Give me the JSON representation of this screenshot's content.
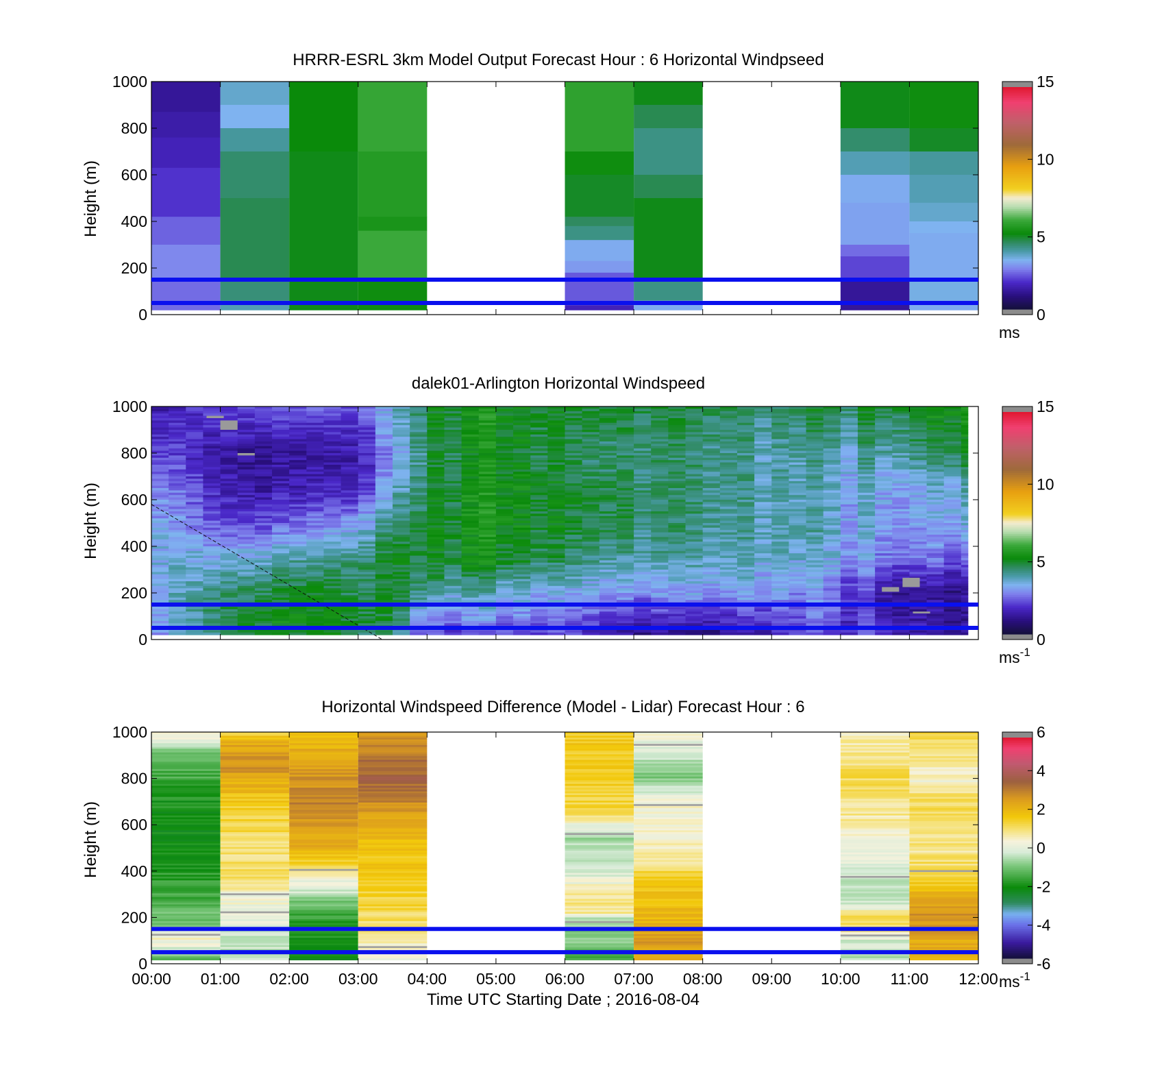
{
  "figure": {
    "xlabel": "Time UTC  Starting Date ; 2016-08-04",
    "time_ticks": [
      "00:00",
      "01:00",
      "02:00",
      "03:00",
      "04:00",
      "05:00",
      "06:00",
      "07:00",
      "08:00",
      "09:00",
      "10:00",
      "11:00",
      "12:00"
    ]
  },
  "chart_data": [
    {
      "type": "heatmap",
      "title": "HRRR-ESRL 3km Model Output   Forecast Hour : 6 Horizontal Windpseed",
      "ylabel": "Height (m)",
      "xlabel": "",
      "xlim": [
        0,
        12
      ],
      "ylim": [
        0,
        1000
      ],
      "yticks": [
        "0",
        "200",
        "400",
        "600",
        "800",
        "1000"
      ],
      "colorbar": {
        "ticks": [
          "0",
          "5",
          "10",
          "15"
        ],
        "range": [
          0,
          15
        ],
        "unit": "ms",
        "unit_exp": ""
      },
      "reference_heights": [
        50,
        150
      ],
      "note_columns_hours": [
        0,
        1,
        2,
        3,
        6,
        7,
        10,
        11
      ],
      "columns": [
        {
          "start": 0,
          "end": 1,
          "cells": [
            [
              1000,
              870,
              1.2
            ],
            [
              870,
              760,
              1.4
            ],
            [
              760,
              630,
              1.6
            ],
            [
              630,
              420,
              1.9
            ],
            [
              420,
              300,
              2.4
            ],
            [
              300,
              150,
              2.8
            ],
            [
              150,
              20,
              2.5
            ]
          ]
        },
        {
          "start": 1,
          "end": 2,
          "cells": [
            [
              1000,
              900,
              3.6
            ],
            [
              900,
              800,
              3.3
            ],
            [
              800,
              700,
              4.0
            ],
            [
              700,
              500,
              4.4
            ],
            [
              500,
              150,
              4.6
            ],
            [
              150,
              60,
              4.3
            ],
            [
              60,
              20,
              3.8
            ]
          ]
        },
        {
          "start": 2,
          "end": 3,
          "cells": [
            [
              1000,
              700,
              5.1
            ],
            [
              700,
              20,
              5.0
            ]
          ]
        },
        {
          "start": 3,
          "end": 4,
          "cells": [
            [
              1000,
              700,
              5.9
            ],
            [
              700,
              420,
              5.6
            ],
            [
              420,
              360,
              5.4
            ],
            [
              360,
              150,
              6.0
            ],
            [
              150,
              20,
              5.2
            ]
          ]
        },
        {
          "start": 6,
          "end": 7,
          "cells": [
            [
              1000,
              700,
              5.8
            ],
            [
              700,
              600,
              5.2
            ],
            [
              600,
              420,
              4.9
            ],
            [
              420,
              380,
              4.5
            ],
            [
              380,
              320,
              4.2
            ],
            [
              320,
              230,
              3.2
            ],
            [
              230,
              180,
              3.0
            ],
            [
              180,
              40,
              2.3
            ],
            [
              40,
              20,
              1.6
            ]
          ]
        },
        {
          "start": 7,
          "end": 8,
          "cells": [
            [
              1000,
              900,
              5.0
            ],
            [
              900,
              800,
              4.6
            ],
            [
              800,
              600,
              4.2
            ],
            [
              600,
              500,
              4.6
            ],
            [
              500,
              150,
              5.0
            ],
            [
              150,
              60,
              4.2
            ],
            [
              60,
              20,
              3.2
            ]
          ]
        },
        {
          "start": 10,
          "end": 11,
          "cells": [
            [
              1000,
              800,
              5.0
            ],
            [
              800,
              700,
              4.4
            ],
            [
              700,
              600,
              3.8
            ],
            [
              600,
              480,
              3.2
            ],
            [
              480,
              300,
              3.1
            ],
            [
              300,
              250,
              2.5
            ],
            [
              250,
              150,
              2.1
            ],
            [
              150,
              20,
              1.2
            ]
          ]
        },
        {
          "start": 11,
          "end": 12,
          "cells": [
            [
              1000,
              800,
              5.2
            ],
            [
              800,
              700,
              4.9
            ],
            [
              700,
              600,
              4.0
            ],
            [
              600,
              480,
              3.8
            ],
            [
              480,
              400,
              3.6
            ],
            [
              400,
              350,
              3.3
            ],
            [
              350,
              150,
              3.2
            ],
            [
              150,
              60,
              3.4
            ],
            [
              60,
              20,
              3.2
            ]
          ]
        }
      ]
    },
    {
      "type": "heatmap",
      "title": "dalek01-Arlington  Horizontal Windspeed",
      "ylabel": "Height (m)",
      "xlabel": "",
      "xlim": [
        0,
        12
      ],
      "ylim": [
        0,
        1000
      ],
      "yticks": [
        "0",
        "200",
        "400",
        "600",
        "800",
        "1000"
      ],
      "colorbar": {
        "ticks": [
          "0",
          "5",
          "10",
          "15"
        ],
        "range": [
          0,
          15
        ],
        "unit": "ms",
        "unit_exp": "-1"
      },
      "reference_heights": [
        50,
        150
      ],
      "profile_step_hours": 0.25,
      "profile_top_m": 1000,
      "profile_bottom_m": 20,
      "profile_end_hours": 11.85,
      "speed_field_knots": {
        "hours": [
          0,
          0.5,
          1,
          1.5,
          2,
          2.5,
          3,
          3.5,
          4,
          5,
          6,
          7,
          8,
          9,
          10,
          11,
          11.85
        ],
        "heights": [
          20,
          100,
          200,
          350,
          500,
          650,
          800,
          1000
        ],
        "values": [
          [
            3.2,
            3.3,
            3.5,
            3.6,
            3.4,
            3.0,
            2.2,
            1.6
          ],
          [
            3.4,
            3.8,
            3.8,
            3.6,
            3.0,
            2.5,
            2.0,
            1.8
          ],
          [
            4.2,
            4.4,
            4.0,
            3.0,
            1.8,
            1.2,
            1.0,
            1.8
          ],
          [
            4.6,
            4.6,
            4.3,
            3.2,
            1.8,
            1.0,
            0.8,
            2.0
          ],
          [
            4.8,
            4.9,
            4.6,
            3.6,
            2.2,
            1.2,
            1.0,
            2.2
          ],
          [
            5.0,
            5.0,
            4.7,
            4.0,
            2.6,
            1.4,
            1.2,
            2.2
          ],
          [
            4.6,
            4.8,
            4.6,
            4.2,
            3.0,
            1.6,
            1.4,
            2.2
          ],
          [
            3.8,
            4.4,
            4.6,
            4.6,
            4.0,
            3.0,
            2.6,
            3.2
          ],
          [
            2.2,
            3.2,
            4.4,
            5.2,
            5.2,
            5.0,
            5.0,
            5.2
          ],
          [
            2.0,
            2.8,
            3.4,
            5.0,
            5.2,
            5.2,
            5.0,
            5.2
          ],
          [
            2.2,
            2.8,
            3.4,
            4.6,
            5.0,
            5.0,
            4.6,
            5.0
          ],
          [
            1.2,
            2.0,
            3.0,
            4.0,
            4.6,
            4.6,
            4.4,
            5.0
          ],
          [
            0.9,
            1.6,
            3.0,
            3.8,
            4.2,
            4.2,
            4.2,
            4.6
          ],
          [
            1.8,
            2.4,
            3.2,
            3.8,
            4.0,
            4.0,
            4.0,
            4.6
          ],
          [
            2.0,
            2.2,
            2.4,
            3.2,
            3.4,
            3.4,
            3.8,
            4.6
          ],
          [
            1.6,
            1.4,
            1.0,
            2.6,
            3.0,
            3.2,
            4.2,
            5.0
          ],
          [
            1.2,
            1.0,
            1.2,
            2.4,
            3.4,
            3.8,
            5.0,
            5.4
          ]
        ]
      },
      "flagged_cells": [
        {
          "hour": 0.8,
          "h_top": 960,
          "h_bot": 950
        },
        {
          "hour": 1.0,
          "h_top": 940,
          "h_bot": 900
        },
        {
          "hour": 1.25,
          "h_top": 800,
          "h_bot": 790
        },
        {
          "hour": 10.6,
          "h_top": 225,
          "h_bot": 205
        },
        {
          "hour": 10.9,
          "h_top": 265,
          "h_bot": 225
        },
        {
          "hour": 11.05,
          "h_top": 120,
          "h_bot": 112
        }
      ],
      "dashed_line": {
        "from": [
          0,
          580
        ],
        "to": [
          3.35,
          0
        ]
      }
    },
    {
      "type": "heatmap",
      "title": "Horizontal Windspeed Difference (Model - Lidar) Forecast Hour : 6",
      "ylabel": "Height (m)",
      "xlabel": "Time UTC  Starting Date ; 2016-08-04",
      "xlim": [
        0,
        12
      ],
      "ylim": [
        0,
        1000
      ],
      "yticks": [
        "0",
        "200",
        "400",
        "600",
        "800",
        "1000"
      ],
      "colorbar": {
        "ticks": [
          "-6",
          "-4",
          "-2",
          "0",
          "2",
          "4",
          "6"
        ],
        "range": [
          -6,
          6
        ],
        "unit": "ms",
        "unit_exp": "-1"
      },
      "reference_heights": [
        50,
        150
      ],
      "columns": [
        {
          "start": 0,
          "end": 1,
          "profile": {
            "heights": [
              1000,
              950,
              900,
              700,
              500,
              300,
              160,
              120,
              80,
              40,
              20
            ],
            "values": [
              0.5,
              -0.3,
              -1.2,
              -2.0,
              -2.2,
              -1.6,
              -1.0,
              0.4,
              0.2,
              -0.8,
              -1.2
            ]
          },
          "gaps": [
            125
          ]
        },
        {
          "start": 1,
          "end": 2,
          "profile": {
            "heights": [
              1000,
              950,
              850,
              700,
              500,
              350,
              300,
              220,
              150,
              80,
              20
            ],
            "values": [
              1.3,
              2.4,
              2.8,
              1.6,
              1.0,
              1.0,
              0.3,
              0.2,
              -0.2,
              -0.4,
              -0.3
            ]
          },
          "gaps": [
            300,
            222
          ]
        },
        {
          "start": 2,
          "end": 3,
          "profile": {
            "heights": [
              1000,
              900,
              700,
              500,
              420,
              380,
              300,
              250,
              150,
              20
            ],
            "values": [
              1.8,
              2.4,
              3.0,
              2.2,
              1.4,
              0.4,
              -0.4,
              -1.2,
              -2.0,
              -2.2
            ]
          },
          "gaps": [
            405
          ]
        },
        {
          "start": 3,
          "end": 4,
          "profile": {
            "heights": [
              1000,
              900,
              800,
              700,
              600,
              500,
              300,
              150,
              80,
              20
            ],
            "values": [
              2.6,
              3.2,
              3.6,
              3.0,
              2.2,
              1.8,
              1.4,
              1.0,
              0.4,
              0.3
            ]
          },
          "gaps": [
            72
          ]
        },
        {
          "start": 6,
          "end": 7,
          "profile": {
            "heights": [
              1000,
              800,
              650,
              600,
              550,
              400,
              300,
              220,
              200,
              100,
              20
            ],
            "values": [
              1.6,
              1.6,
              1.2,
              0.2,
              -0.6,
              -0.3,
              0.8,
              0.8,
              -0.6,
              -1.0,
              -1.4
            ]
          },
          "gaps": [
            560,
            180
          ]
        },
        {
          "start": 7,
          "end": 8,
          "profile": {
            "heights": [
              1000,
              900,
              800,
              700,
              600,
              450,
              400,
              300,
              200,
              100,
              20
            ],
            "values": [
              0.3,
              -0.3,
              -1.0,
              0.3,
              0.4,
              0.6,
              1.2,
              1.8,
              2.0,
              2.6,
              2.2
            ]
          },
          "gaps": [
            945,
            685
          ]
        },
        {
          "start": 10,
          "end": 11,
          "profile": {
            "heights": [
              1000,
              900,
              800,
              600,
              500,
              400,
              300,
              250,
              200,
              150,
              100,
              20
            ],
            "values": [
              0.4,
              0.9,
              1.2,
              0.6,
              0.3,
              -0.2,
              -0.6,
              -0.2,
              1.4,
              1.1,
              -0.2,
              -0.5
            ]
          },
          "gaps": [
            375,
            122
          ]
        },
        {
          "start": 11,
          "end": 12,
          "profile": {
            "heights": [
              1000,
              900,
              800,
              700,
              500,
              400,
              350,
              300,
              200,
              100,
              20
            ],
            "values": [
              1.3,
              1.0,
              0.3,
              1.2,
              0.8,
              1.2,
              1.6,
              2.2,
              2.8,
              2.4,
              2.0
            ]
          },
          "gaps": [
            400
          ]
        }
      ]
    }
  ]
}
